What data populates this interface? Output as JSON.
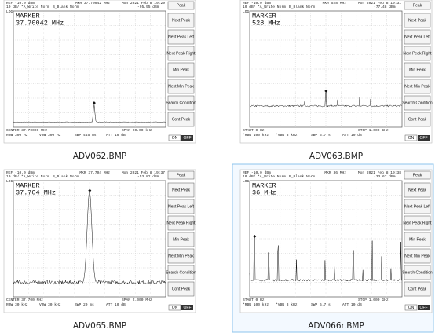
{
  "softkeys": [
    "Peak",
    "Next Peak",
    "Next Peak Left",
    "Next Peak Right",
    "Min Peak",
    "Next Min Peak",
    "Search Condition",
    "Cont Peak"
  ],
  "on": "ON",
  "off": "OFF",
  "scale_tag": "LOG",
  "panels": [
    {
      "file": "ADV062.BMP",
      "ref": "REF -10.0 dBm",
      "date": "Mon 2021 Feb  8 19:29",
      "scale": "10 dB/",
      "trace_a": "*A_Write Norm",
      "trace_b": "B_Blank Norm",
      "mkr": "MKR 37.70042 MHz",
      "mkr_level": "-95.95 dBm",
      "marker_title": "MARKER",
      "marker_value": "37.70042 MHz",
      "left": "CENTER 37.70000 MHz",
      "right": "SPAN 20.00 kHz",
      "rbw": "RBW 300 Hz",
      "vbw": "VBW 300 Hz",
      "swp": "SWP 445 ms",
      "att": "ATT 10 dB"
    },
    {
      "file": "ADV063.BMP",
      "ref": "REF -10.0 dBm",
      "date": "Mon 2021 Feb  8 19:31",
      "scale": "10 dB/",
      "trace_a": "*A_Write Norm",
      "trace_b": "B_Blank Norm",
      "mkr": "MKR 528 MHz",
      "mkr_level": "-77.48 dBm",
      "marker_title": "MARKER",
      "marker_value": "528 MHz",
      "left": "START 0 Hz",
      "right": "STOP 1.000 GHz",
      "rbw": "*RBW 100 kHz",
      "vbw": "*VBW 3 kHz",
      "swp": "SWP 6.7 s",
      "att": "ATT 10 dB"
    },
    {
      "file": "ADV065.BMP",
      "ref": "REF -10.0 dBm",
      "date": "Mon 2021 Feb  8 19:37",
      "scale": "10 dB/",
      "trace_a": "*A_Write Norm",
      "trace_b": "B_Blank Norm",
      "mkr": "MKR 37.704 MHz",
      "mkr_level": "-53.82 dBm",
      "marker_title": "MARKER",
      "marker_value": "37.704 MHz",
      "left": "CENTER 37.700 MHz",
      "right": "SPAN 2.000 MHz",
      "rbw": "RBW 30 kHz",
      "vbw": "VBW 30 kHz",
      "swp": "SWP 20 ms",
      "att": "ATT 10 dB"
    },
    {
      "file": "ADV066r.BMP",
      "ref": "REF -10.0 dBm",
      "date": "Mon 2021 Feb  8 19:38",
      "scale": "10 dB/",
      "trace_a": "*A_Write Norm",
      "trace_b": "B_Blank Norm",
      "mkr": "MKR 36 MHz",
      "mkr_level": "-33.62 dBm",
      "marker_title": "MARKER",
      "marker_value": "36 MHz",
      "left": "START 0 Hz",
      "right": "STOP 1.000 GHz",
      "rbw": "*RBW 100 kHz",
      "vbw": "*VBW 3 kHz",
      "swp": "SWP 6.7 s",
      "att": "ATT 10 dB"
    }
  ]
}
